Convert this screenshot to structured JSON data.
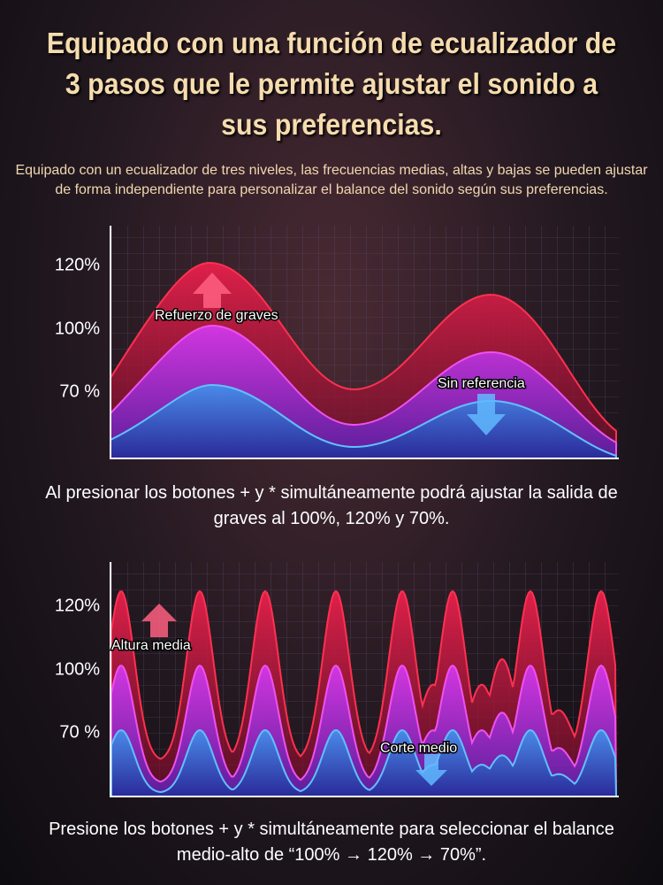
{
  "header": {
    "title": "Equipado con una función de ecualizador de 3 pasos que le permite ajustar el sonido a sus preferencias.",
    "subtitle": "Equipado con un ecualizador de tres niveles, las frecuencias medias, altas y bajas se pueden ajustar de forma independiente para personalizar el balance del sonido según sus preferencias."
  },
  "panels": [
    {
      "levels": [
        "120%",
        "100%",
        "70 %"
      ],
      "annotations": [
        "Refuerzo de graves",
        "Sin referencia"
      ],
      "caption": "Al presionar los botones + y * simultáneamente podrá ajustar la salida de graves al 100%, 120% y 70%."
    },
    {
      "levels": [
        "120%",
        "100%",
        "70 %"
      ],
      "annotations": [
        "Altura media",
        "Corte medio"
      ],
      "caption": "Presione los botones + y * simultáneamente para seleccionar el balance medio-alto de “100% → 120% → 70%”."
    }
  ]
}
